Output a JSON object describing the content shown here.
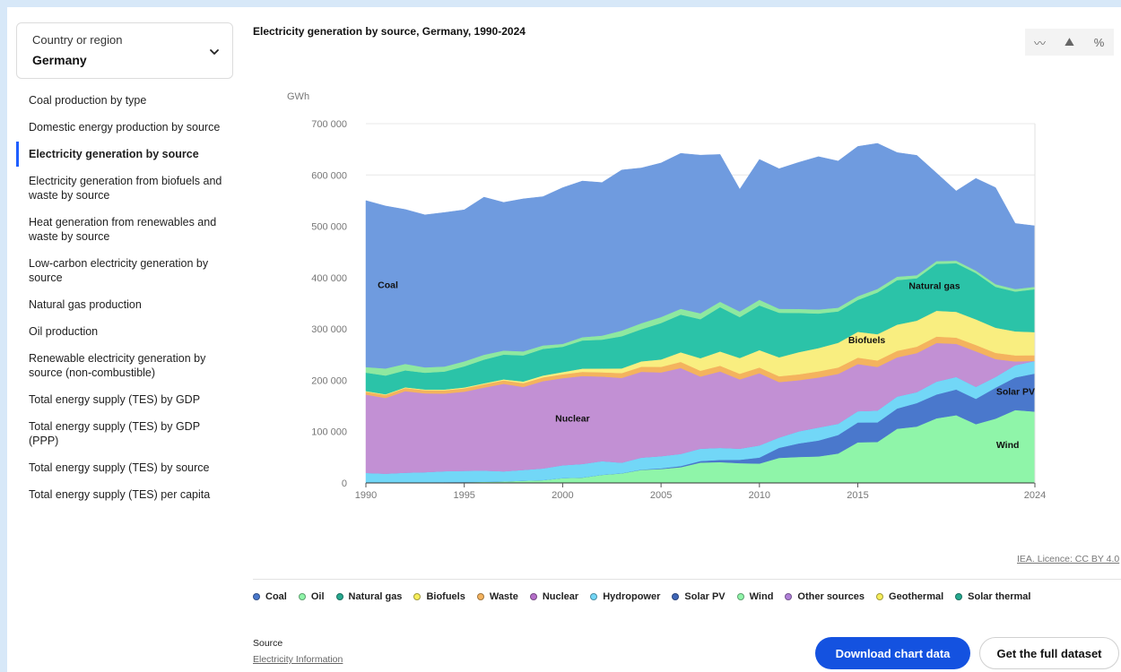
{
  "sidebar": {
    "country_label": "Country or region",
    "country_value": "Germany",
    "items": [
      {
        "label": "Coal production by type",
        "active": false
      },
      {
        "label": "Domestic energy production by source",
        "active": false
      },
      {
        "label": "Electricity generation by source",
        "active": true
      },
      {
        "label": "Electricity generation from biofuels and waste by source",
        "active": false
      },
      {
        "label": "Heat generation from renewables and waste by source",
        "active": false
      },
      {
        "label": "Low-carbon electricity generation by source",
        "active": false
      },
      {
        "label": "Natural gas production",
        "active": false
      },
      {
        "label": "Oil production",
        "active": false
      },
      {
        "label": "Renewable electricity generation by source (non-combustible)",
        "active": false
      },
      {
        "label": "Total energy supply (TES) by GDP",
        "active": false
      },
      {
        "label": "Total energy supply (TES) by GDP (PPP)",
        "active": false
      },
      {
        "label": "Total energy supply (TES) by source",
        "active": false
      },
      {
        "label": "Total energy supply (TES) per capita",
        "active": false
      }
    ]
  },
  "toolbar": {
    "buttons": [
      {
        "icon": "line-chart-icon",
        "glyph": "〰"
      },
      {
        "icon": "area-chart-icon",
        "glyph": "⛰"
      },
      {
        "icon": "percent-icon",
        "glyph": "%"
      }
    ]
  },
  "licence": "IEA. Licence: CC BY 4.0",
  "source": {
    "label": "Source",
    "link": "Electricity Information"
  },
  "buttons": {
    "download": "Download chart data",
    "dataset": "Get the full dataset"
  },
  "chart_data": {
    "type": "area",
    "stacked": true,
    "title": "Electricity generation by source, Germany, 1990-2024",
    "ylabel": "GWh",
    "ylim": [
      0,
      700000
    ],
    "yticks": [
      0,
      100000,
      200000,
      300000,
      400000,
      500000,
      600000,
      700000
    ],
    "ytick_labels": [
      "0",
      "100 000",
      "200 000",
      "300 000",
      "400 000",
      "500 000",
      "600 000",
      "700 000"
    ],
    "xticks": [
      1990,
      1995,
      2000,
      2005,
      2010,
      2015,
      2024
    ],
    "grid": true,
    "legend_position": "bottom",
    "x": [
      1990,
      1991,
      1992,
      1993,
      1994,
      1995,
      1996,
      1997,
      1998,
      1999,
      2000,
      2001,
      2002,
      2003,
      2004,
      2005,
      2006,
      2007,
      2008,
      2009,
      2010,
      2011,
      2012,
      2013,
      2014,
      2015,
      2016,
      2017,
      2018,
      2019,
      2020,
      2021,
      2022,
      2023,
      2024
    ],
    "series": [
      {
        "name": "Geothermal",
        "color": "#f7ee5a",
        "values": [
          0,
          0,
          0,
          0,
          0,
          0,
          0,
          0,
          0,
          0,
          0,
          0,
          0,
          0,
          0,
          0,
          0,
          0,
          0,
          0,
          0,
          0,
          0,
          0,
          0,
          0,
          0,
          0,
          0,
          0,
          0,
          0,
          0,
          0,
          0
        ]
      },
      {
        "name": "Solar thermal",
        "color": "#26c0a3",
        "values": [
          0,
          0,
          0,
          0,
          0,
          0,
          0,
          0,
          0,
          0,
          0,
          0,
          0,
          0,
          0,
          0,
          0,
          0,
          0,
          0,
          0,
          0,
          0,
          0,
          0,
          0,
          0,
          0,
          0,
          0,
          0,
          0,
          0,
          0,
          0
        ]
      },
      {
        "name": "Wind",
        "color": "#8ff5a9",
        "values": [
          0,
          0,
          300,
          600,
          1400,
          1800,
          2200,
          3000,
          4500,
          5500,
          9500,
          10500,
          15800,
          18700,
          25500,
          27200,
          30700,
          39700,
          40600,
          38600,
          37800,
          48900,
          50700,
          51700,
          57400,
          79200,
          79900,
          105700,
          109900,
          126000,
          132100,
          114600,
          125300,
          142100,
          139100
        ]
      },
      {
        "name": "Solar PV",
        "color": "#4a78cc",
        "values": [
          0,
          0,
          0,
          0,
          0,
          0,
          0,
          0,
          0,
          100,
          100,
          200,
          200,
          300,
          600,
          1300,
          2200,
          3100,
          4400,
          6600,
          11700,
          19600,
          26400,
          31000,
          36100,
          38700,
          38100,
          39400,
          45800,
          46400,
          50000,
          49300,
          60300,
          63500,
          74100
        ]
      },
      {
        "name": "Hydropower",
        "color": "#72d7f7",
        "values": [
          19700,
          18200,
          19800,
          20500,
          21600,
          22000,
          22000,
          19800,
          21000,
          22800,
          25000,
          26400,
          26600,
          20600,
          23400,
          23800,
          23800,
          24100,
          23500,
          21700,
          23800,
          20100,
          23600,
          25500,
          21900,
          22000,
          23200,
          23400,
          21400,
          25200,
          24600,
          23500,
          21100,
          24000,
          24600
        ]
      },
      {
        "name": "Other sources",
        "color": "#b07fd8",
        "values": [
          0,
          0,
          0,
          0,
          0,
          0,
          0,
          0,
          0,
          0,
          0,
          0,
          0,
          0,
          0,
          0,
          0,
          0,
          0,
          0,
          0,
          0,
          0,
          0,
          0,
          0,
          0,
          0,
          0,
          0,
          0,
          0,
          0,
          0,
          0
        ]
      },
      {
        "name": "Nuclear",
        "color": "#c290d4",
        "values": [
          152500,
          147400,
          158800,
          153500,
          151200,
          154100,
          161600,
          170300,
          161600,
          170000,
          169600,
          171300,
          164800,
          165100,
          167100,
          163100,
          167300,
          140500,
          148800,
          134900,
          140600,
          108000,
          99500,
          97300,
          97100,
          91800,
          84900,
          76300,
          76000,
          75100,
          64400,
          69100,
          34700,
          7200,
          0
        ]
      },
      {
        "name": "Waste",
        "color": "#f4b35e",
        "values": [
          5700,
          5900,
          6100,
          6100,
          6300,
          6500,
          6600,
          6700,
          7400,
          7400,
          7500,
          8100,
          8200,
          9400,
          9800,
          10800,
          11900,
          11300,
          11100,
          11000,
          11100,
          11300,
          11500,
          12000,
          12500,
          12500,
          12600,
          12700,
          12500,
          12500,
          12100,
          12400,
          12100,
          11800,
          11000
        ]
      },
      {
        "name": "Biofuels",
        "color": "#f9ee80",
        "values": [
          1200,
          1300,
          1400,
          1500,
          1600,
          1700,
          1800,
          2100,
          3200,
          3500,
          4400,
          6300,
          7300,
          9100,
          10600,
          14400,
          18700,
          24400,
          27800,
          30700,
          33900,
          36900,
          43200,
          45300,
          48100,
          50300,
          51200,
          51000,
          50700,
          50300,
          50300,
          49900,
          49000,
          46800,
          45100
        ]
      },
      {
        "name": "Natural gas",
        "color": "#2bc3a8",
        "values": [
          35900,
          36500,
          33000,
          32600,
          35000,
          41100,
          46100,
          48200,
          50800,
          51900,
          49200,
          54800,
          56300,
          62600,
          62500,
          71000,
          73400,
          76000,
          86400,
          79700,
          87000,
          86800,
          76400,
          67300,
          61100,
          62100,
          81300,
          86700,
          82500,
          91400,
          94600,
          90100,
          79600,
          77500,
          83600
        ]
      },
      {
        "name": "Oil",
        "color": "#8ee8a0",
        "values": [
          10800,
          13800,
          12600,
          10500,
          9800,
          9800,
          9500,
          7900,
          7900,
          6800,
          5700,
          6400,
          7900,
          11100,
          11800,
          11700,
          11300,
          11500,
          10500,
          10900,
          11000,
          7800,
          7800,
          7900,
          7300,
          7300,
          6900,
          6800,
          6000,
          5300,
          5000,
          4900,
          5200,
          5000,
          4700
        ]
      },
      {
        "name": "Coal",
        "color": "#6f9bdf",
        "values": [
          324300,
          316500,
          300800,
          297000,
          300000,
          295100,
          307000,
          288600,
          297100,
          289800,
          304300,
          304200,
          298200,
          312800,
          302400,
          300100,
          302800,
          308000,
          286900,
          238100,
          273400,
          272800,
          285500,
          297700,
          285700,
          291700,
          283500,
          241600,
          233400,
          171600,
          135800,
          179600,
          188100,
          127700,
          118700
        ]
      }
    ],
    "annotations": [
      {
        "text": "Coal",
        "x": 1990.6,
        "y": 380000,
        "anchor": "start"
      },
      {
        "text": "Natural gas",
        "x": 2020.2,
        "y": 378000,
        "anchor": "end"
      },
      {
        "text": "Biofuels",
        "x": 2016.4,
        "y": 272000,
        "anchor": "end"
      },
      {
        "text": "Solar PV",
        "x": 2024,
        "y": 172000,
        "anchor": "end"
      },
      {
        "text": "Nuclear",
        "x": 2000.5,
        "y": 120000,
        "anchor": "middle"
      },
      {
        "text": "Wind",
        "x": 2023.2,
        "y": 68000,
        "anchor": "end"
      }
    ]
  },
  "legend": [
    {
      "name": "Coal",
      "color": "#4a78cc"
    },
    {
      "name": "Oil",
      "color": "#8ff5a9"
    },
    {
      "name": "Natural gas",
      "color": "#26a98f"
    },
    {
      "name": "Biofuels",
      "color": "#f7ee5a"
    },
    {
      "name": "Waste",
      "color": "#f4b35e"
    },
    {
      "name": "Nuclear",
      "color": "#b56ec9"
    },
    {
      "name": "Hydropower",
      "color": "#72d7f7"
    },
    {
      "name": "Solar PV",
      "color": "#3f66b8"
    },
    {
      "name": "Wind",
      "color": "#8ff5a9"
    },
    {
      "name": "Other sources",
      "color": "#b07fd8"
    },
    {
      "name": "Geothermal",
      "color": "#f7ee5a"
    },
    {
      "name": "Solar thermal",
      "color": "#26a98f"
    }
  ]
}
